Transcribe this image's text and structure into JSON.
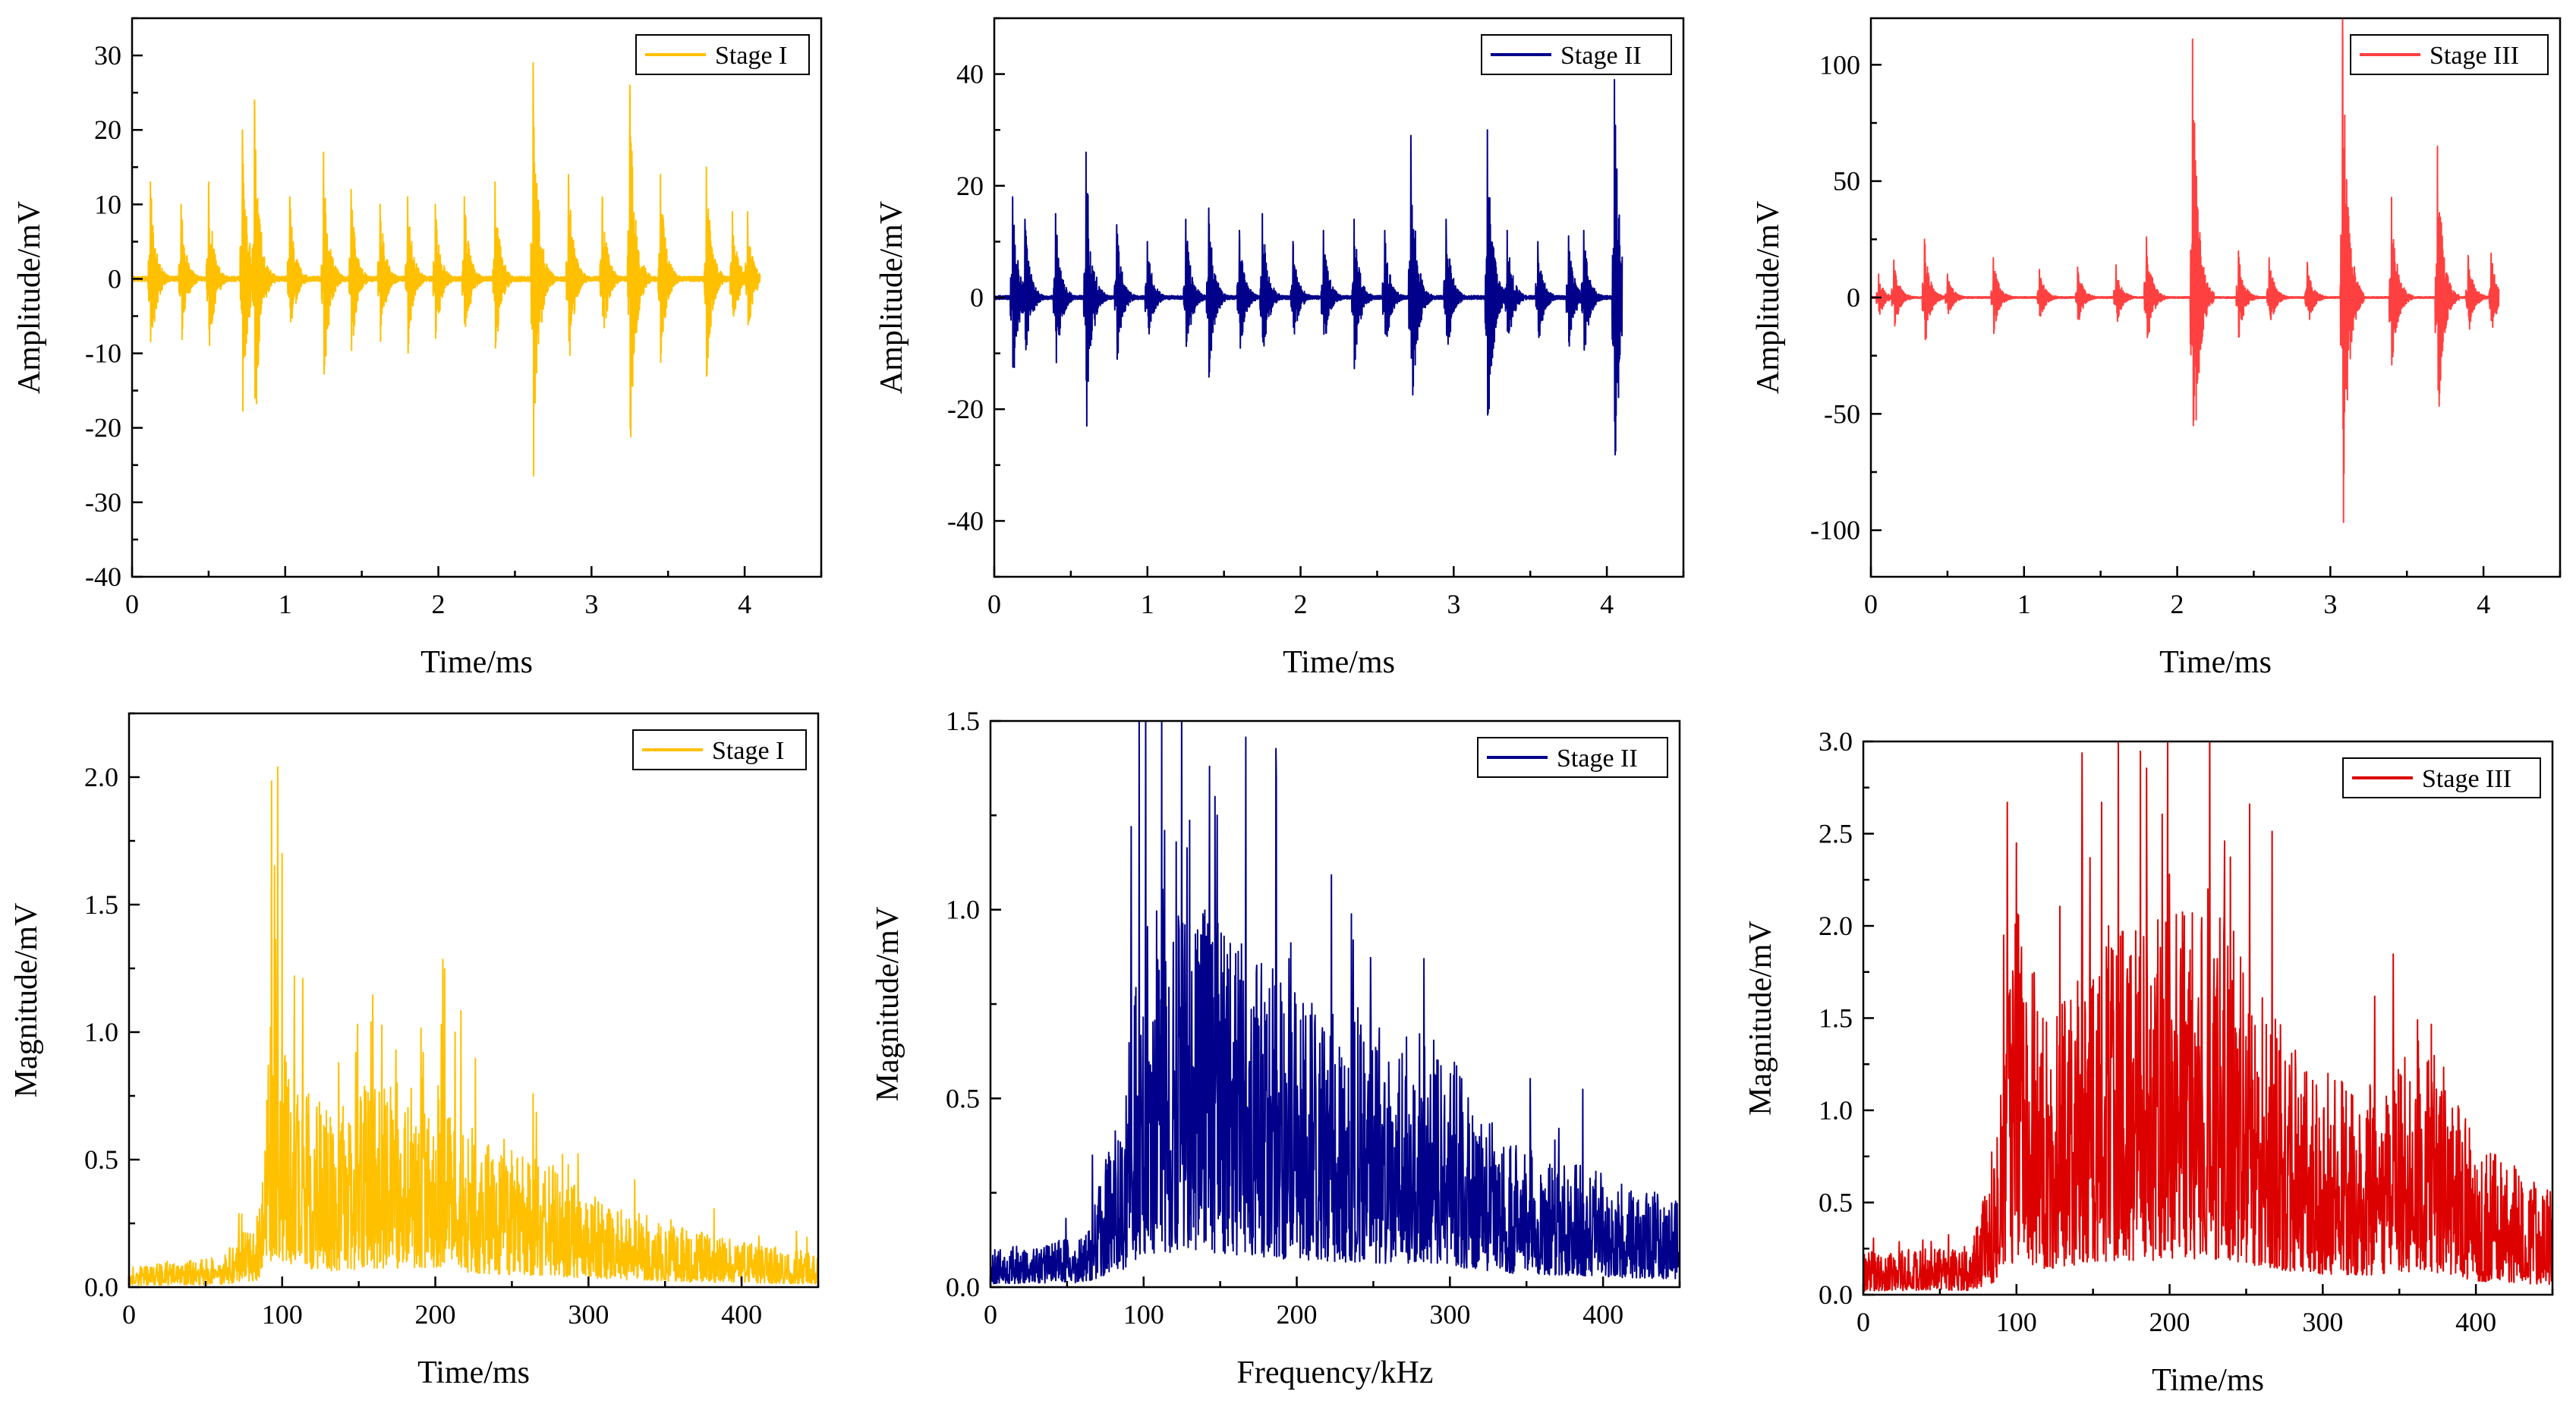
{
  "chart_data": [
    {
      "type": "line",
      "panel": "top-left",
      "title": "",
      "xlabel": "Time/ms",
      "ylabel": "Amplitude/mV",
      "xlim": [
        0,
        4.5
      ],
      "ylim": [
        -40,
        35
      ],
      "xticks": [
        0,
        1,
        2,
        3,
        4
      ],
      "yticks": [
        -40,
        -30,
        -20,
        -10,
        0,
        10,
        20,
        30
      ],
      "legend": "top-right",
      "series": [
        {
          "name": "Stage I",
          "color": "#FFC000",
          "signal": "burst-waveform",
          "x_range": [
            0,
            4.1
          ],
          "bursts": [
            {
              "t": 0.12,
              "peak": 13
            },
            {
              "t": 0.32,
              "peak": 10
            },
            {
              "t": 0.5,
              "peak": 13
            },
            {
              "t": 0.72,
              "peak": 20
            },
            {
              "t": 0.8,
              "peak": 24
            },
            {
              "t": 1.03,
              "peak": 11
            },
            {
              "t": 1.25,
              "peak": 17
            },
            {
              "t": 1.43,
              "peak": 12
            },
            {
              "t": 1.62,
              "peak": 10
            },
            {
              "t": 1.8,
              "peak": 11
            },
            {
              "t": 1.98,
              "peak": 10
            },
            {
              "t": 2.17,
              "peak": 11
            },
            {
              "t": 2.37,
              "peak": 13
            },
            {
              "t": 2.62,
              "peak": 29
            },
            {
              "t": 2.85,
              "peak": 14
            },
            {
              "t": 3.07,
              "peak": 11
            },
            {
              "t": 3.25,
              "peak": 26
            },
            {
              "t": 3.45,
              "peak": 14
            },
            {
              "t": 3.75,
              "peak": 15
            },
            {
              "t": 3.92,
              "peak": 9
            },
            {
              "t": 4.02,
              "peak": 9
            }
          ]
        }
      ]
    },
    {
      "type": "line",
      "panel": "top-middle",
      "title": "",
      "xlabel": "Time/ms",
      "ylabel": "Amplitude/mV",
      "xlim": [
        0,
        4.5
      ],
      "ylim": [
        -50,
        50
      ],
      "xticks": [
        0,
        1,
        2,
        3,
        4
      ],
      "yticks": [
        -40,
        -20,
        0,
        20,
        40
      ],
      "legend": "top-right",
      "series": [
        {
          "name": "Stage II",
          "color": "#00008B",
          "signal": "burst-waveform",
          "x_range": [
            0,
            4.1
          ],
          "bursts": [
            {
              "t": 0.12,
              "peak": 18
            },
            {
              "t": 0.2,
              "peak": 14
            },
            {
              "t": 0.4,
              "peak": 15
            },
            {
              "t": 0.6,
              "peak": 26
            },
            {
              "t": 0.8,
              "peak": 13
            },
            {
              "t": 1.0,
              "peak": 10
            },
            {
              "t": 1.25,
              "peak": 14
            },
            {
              "t": 1.4,
              "peak": 16
            },
            {
              "t": 1.6,
              "peak": 12
            },
            {
              "t": 1.75,
              "peak": 15
            },
            {
              "t": 1.95,
              "peak": 10
            },
            {
              "t": 2.15,
              "peak": 12
            },
            {
              "t": 2.35,
              "peak": 14
            },
            {
              "t": 2.55,
              "peak": 12
            },
            {
              "t": 2.72,
              "peak": 29
            },
            {
              "t": 2.95,
              "peak": 14
            },
            {
              "t": 3.22,
              "peak": 30
            },
            {
              "t": 3.35,
              "peak": 12
            },
            {
              "t": 3.55,
              "peak": 10
            },
            {
              "t": 3.75,
              "peak": 11
            },
            {
              "t": 3.85,
              "peak": 12
            },
            {
              "t": 4.05,
              "peak": 39
            }
          ]
        }
      ]
    },
    {
      "type": "line",
      "panel": "top-right",
      "title": "",
      "xlabel": "Time/ms",
      "ylabel": "Amplitude/mV",
      "xlim": [
        0,
        4.5
      ],
      "ylim": [
        -120,
        120
      ],
      "xticks": [
        0,
        1,
        2,
        3,
        4
      ],
      "yticks": [
        -100,
        -50,
        0,
        50,
        100
      ],
      "legend": "top-right",
      "series": [
        {
          "name": "Stage III",
          "color": "#FF4040",
          "signal": "burst-waveform",
          "x_range": [
            0,
            4.1
          ],
          "bursts": [
            {
              "t": 0.05,
              "peak": 10
            },
            {
              "t": 0.15,
              "peak": 16
            },
            {
              "t": 0.35,
              "peak": 25
            },
            {
              "t": 0.5,
              "peak": 10
            },
            {
              "t": 0.8,
              "peak": 17
            },
            {
              "t": 1.1,
              "peak": 12
            },
            {
              "t": 1.35,
              "peak": 13
            },
            {
              "t": 1.6,
              "peak": 14
            },
            {
              "t": 1.8,
              "peak": 26
            },
            {
              "t": 2.1,
              "peak": 111
            },
            {
              "t": 2.4,
              "peak": 20
            },
            {
              "t": 2.6,
              "peak": 17
            },
            {
              "t": 2.85,
              "peak": 15
            },
            {
              "t": 3.08,
              "peak": 120
            },
            {
              "t": 3.4,
              "peak": 43
            },
            {
              "t": 3.7,
              "peak": 65
            },
            {
              "t": 3.9,
              "peak": 18
            },
            {
              "t": 4.05,
              "peak": 19
            }
          ]
        }
      ]
    },
    {
      "type": "line",
      "panel": "bottom-left",
      "title": "",
      "xlabel": "Time/ms",
      "ylabel": "Magnitude/mV",
      "xlim": [
        0,
        450
      ],
      "ylim": [
        0,
        2.25
      ],
      "xticks": [
        0,
        100,
        200,
        300,
        400
      ],
      "yticks": [
        0.0,
        0.5,
        1.0,
        1.5,
        2.0
      ],
      "legend": "top-right",
      "series": [
        {
          "name": "Stage I",
          "color": "#FFC000",
          "signal": "noisy-spectrum",
          "x_range": [
            0,
            450
          ],
          "envelope": [
            [
              0,
              0.05
            ],
            [
              60,
              0.07
            ],
            [
              85,
              0.18
            ],
            [
              95,
              0.85
            ],
            [
              105,
              0.55
            ],
            [
              130,
              0.42
            ],
            [
              160,
              0.5
            ],
            [
              200,
              0.5
            ],
            [
              230,
              0.35
            ],
            [
              270,
              0.3
            ],
            [
              300,
              0.24
            ],
            [
              350,
              0.15
            ],
            [
              400,
              0.11
            ],
            [
              450,
              0.08
            ]
          ],
          "peaks": [
            {
              "x": 97,
              "y": 2.04
            },
            {
              "x": 100,
              "y": 1.7
            },
            {
              "x": 108,
              "y": 1.22
            },
            {
              "x": 137,
              "y": 0.88
            },
            {
              "x": 148,
              "y": 0.92
            },
            {
              "x": 158,
              "y": 1.04
            },
            {
              "x": 204,
              "y": 1.03
            },
            {
              "x": 192,
              "y": 0.92
            },
            {
              "x": 245,
              "y": 0.58
            },
            {
              "x": 283,
              "y": 0.52
            }
          ]
        }
      ]
    },
    {
      "type": "line",
      "panel": "bottom-middle",
      "title": "",
      "xlabel": "Frequency/kHz",
      "ylabel": "Magnitude/mV",
      "xlim": [
        0,
        450
      ],
      "ylim": [
        0,
        1.5
      ],
      "xticks": [
        0,
        100,
        200,
        300,
        400
      ],
      "yticks": [
        0.0,
        0.5,
        1.0,
        1.5
      ],
      "legend": "top-right",
      "series": [
        {
          "name": "Stage II",
          "color": "#00008B",
          "signal": "noisy-spectrum",
          "x_range": [
            0,
            450
          ],
          "envelope": [
            [
              0,
              0.06
            ],
            [
              60,
              0.08
            ],
            [
              85,
              0.28
            ],
            [
              100,
              0.6
            ],
            [
              140,
              0.62
            ],
            [
              200,
              0.48
            ],
            [
              250,
              0.42
            ],
            [
              290,
              0.42
            ],
            [
              330,
              0.25
            ],
            [
              380,
              0.2
            ],
            [
              450,
              0.14
            ]
          ],
          "peaks": [
            {
              "x": 92,
              "y": 1.22
            },
            {
              "x": 97,
              "y": 1.52
            },
            {
              "x": 143,
              "y": 1.38
            },
            {
              "x": 148,
              "y": 1.25
            },
            {
              "x": 127,
              "y": 0.96
            },
            {
              "x": 195,
              "y": 0.87
            },
            {
              "x": 240,
              "y": 0.74
            },
            {
              "x": 283,
              "y": 0.87
            }
          ]
        }
      ]
    },
    {
      "type": "line",
      "panel": "bottom-right",
      "title": "",
      "xlabel": "Time/ms",
      "ylabel": "Magnitude/mV",
      "xlim": [
        0,
        450
      ],
      "ylim": [
        0,
        3.0
      ],
      "xticks": [
        0,
        100,
        200,
        300,
        400
      ],
      "yticks": [
        0.0,
        0.5,
        1.0,
        1.5,
        2.0,
        2.5,
        3.0
      ],
      "legend": "top-right",
      "series": [
        {
          "name": "Stage III",
          "color": "#DD0000",
          "signal": "noisy-spectrum",
          "x_range": [
            0,
            450
          ],
          "envelope": [
            [
              0,
              0.14
            ],
            [
              70,
              0.16
            ],
            [
              85,
              0.45
            ],
            [
              100,
              1.3
            ],
            [
              120,
              0.9
            ],
            [
              150,
              1.2
            ],
            [
              200,
              1.25
            ],
            [
              235,
              1.3
            ],
            [
              270,
              0.9
            ],
            [
              300,
              0.75
            ],
            [
              340,
              0.7
            ],
            [
              365,
              0.9
            ],
            [
              400,
              0.5
            ],
            [
              450,
              0.35
            ]
          ],
          "peaks": [
            {
              "x": 94,
              "y": 2.67
            },
            {
              "x": 100,
              "y": 2.45
            },
            {
              "x": 148,
              "y": 2.37
            },
            {
              "x": 160,
              "y": 2.0
            },
            {
              "x": 200,
              "y": 2.28
            },
            {
              "x": 225,
              "y": 2.2
            },
            {
              "x": 236,
              "y": 2.46
            },
            {
              "x": 362,
              "y": 1.49
            }
          ]
        }
      ]
    }
  ]
}
